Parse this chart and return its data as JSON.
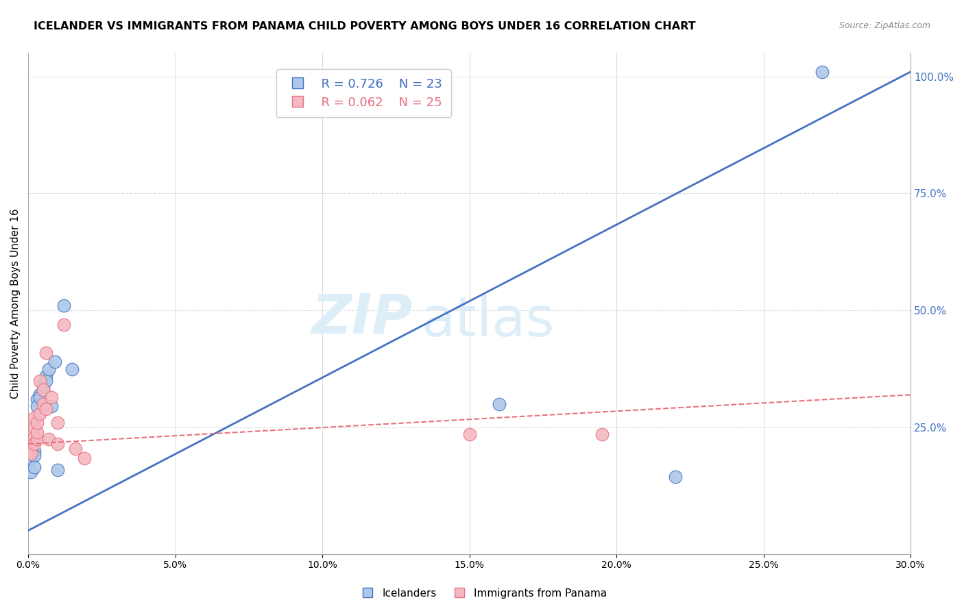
{
  "title": "ICELANDER VS IMMIGRANTS FROM PANAMA CHILD POVERTY AMONG BOYS UNDER 16 CORRELATION CHART",
  "source": "Source: ZipAtlas.com",
  "ylabel": "Child Poverty Among Boys Under 16",
  "xlim": [
    0.0,
    0.3
  ],
  "ylim": [
    -0.02,
    1.05
  ],
  "xticks": [
    0.0,
    0.05,
    0.1,
    0.15,
    0.2,
    0.25,
    0.3
  ],
  "yticks_right": [
    0.25,
    0.5,
    0.75,
    1.0
  ],
  "icelanders_x": [
    0.0,
    0.001,
    0.001,
    0.002,
    0.002,
    0.002,
    0.003,
    0.003,
    0.004,
    0.004,
    0.005,
    0.005,
    0.006,
    0.006,
    0.007,
    0.008,
    0.009,
    0.01,
    0.012,
    0.015,
    0.16,
    0.22,
    0.27
  ],
  "icelanders_y": [
    0.175,
    0.185,
    0.155,
    0.2,
    0.19,
    0.165,
    0.31,
    0.295,
    0.32,
    0.315,
    0.33,
    0.34,
    0.36,
    0.35,
    0.375,
    0.295,
    0.39,
    0.16,
    0.51,
    0.375,
    0.3,
    0.145,
    1.01
  ],
  "panama_x": [
    0.0,
    0.001,
    0.001,
    0.002,
    0.002,
    0.002,
    0.002,
    0.003,
    0.003,
    0.003,
    0.004,
    0.004,
    0.005,
    0.005,
    0.006,
    0.006,
    0.007,
    0.008,
    0.01,
    0.01,
    0.012,
    0.016,
    0.019,
    0.15,
    0.195
  ],
  "panama_y": [
    0.2,
    0.21,
    0.195,
    0.23,
    0.215,
    0.25,
    0.27,
    0.225,
    0.24,
    0.26,
    0.35,
    0.28,
    0.3,
    0.33,
    0.41,
    0.29,
    0.225,
    0.315,
    0.215,
    0.26,
    0.47,
    0.205,
    0.185,
    0.235,
    0.235
  ],
  "r_icelanders": 0.726,
  "n_icelanders": 23,
  "r_panama": 0.062,
  "n_panama": 25,
  "color_icelanders": "#adc8e8",
  "color_panama": "#f4b8c2",
  "color_line_icelanders": "#4472c4",
  "color_line_panama": "#e87080",
  "watermark_zip": "ZIP",
  "watermark_atlas": "atlas",
  "watermark_color": "#ddeef8",
  "background_color": "#ffffff",
  "grid_color": "#dddddd",
  "trend_line_start_x": 0.0,
  "trend_line_end_x": 0.3,
  "blue_trend_y_at_0": 0.03,
  "blue_trend_y_at_30": 1.01,
  "pink_trend_y_at_0": 0.215,
  "pink_trend_y_at_30": 0.32
}
